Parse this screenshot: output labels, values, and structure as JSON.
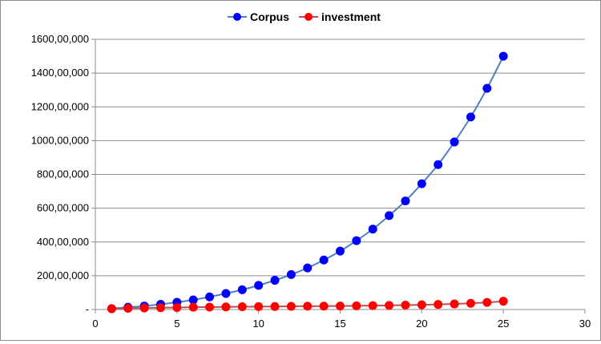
{
  "chart_data": {
    "type": "scatter",
    "title": "",
    "xlabel": "",
    "ylabel": "",
    "xlim": [
      0,
      30
    ],
    "ylim": [
      0,
      160000000
    ],
    "x_ticks": [
      0,
      5,
      10,
      15,
      20,
      25,
      30
    ],
    "x_tick_labels": [
      "0",
      "5",
      "10",
      "15",
      "20",
      "25",
      "30"
    ],
    "y_ticks": [
      0,
      20000000,
      40000000,
      60000000,
      80000000,
      100000000,
      120000000,
      140000000,
      160000000
    ],
    "y_tick_labels": [
      "-",
      "200,00,000",
      "400,00,000",
      "600,00,000",
      "800,00,000",
      "1000,00,000",
      "1200,00,000",
      "1400,00,000",
      "1600,00,000"
    ],
    "grid": "horizontal",
    "legend": "top-center",
    "series": [
      {
        "name": "Corpus",
        "color": "#0000ff",
        "line_color": "#4f81bd",
        "x": [
          1,
          2,
          3,
          4,
          5,
          6,
          7,
          8,
          9,
          10,
          11,
          12,
          13,
          14,
          15,
          16,
          17,
          18,
          19,
          20,
          21,
          22,
          23,
          24,
          25
        ],
        "y": [
          560000,
          1340000,
          2100000,
          3100000,
          4300000,
          5700000,
          7500000,
          9500000,
          11700000,
          14300000,
          17300000,
          20700000,
          24600000,
          29300000,
          34600000,
          40800000,
          47600000,
          55600000,
          64300000,
          74500000,
          85800000,
          99200000,
          114000000,
          131000000,
          150000000
        ]
      },
      {
        "name": "investment",
        "color": "#ff0000",
        "line_color": "#c0504d",
        "x": [
          1,
          2,
          3,
          4,
          5,
          6,
          7,
          8,
          9,
          10,
          11,
          12,
          13,
          14,
          15,
          16,
          17,
          18,
          19,
          20,
          21,
          22,
          23,
          24,
          25
        ],
        "y": [
          500000,
          700000,
          900000,
          1050000,
          1200000,
          1350000,
          1450000,
          1550000,
          1650000,
          1750000,
          1800000,
          1900000,
          1950000,
          2000000,
          2100000,
          2200000,
          2300000,
          2450000,
          2600000,
          2800000,
          3000000,
          3300000,
          3700000,
          4200000,
          4900000
        ]
      }
    ]
  }
}
